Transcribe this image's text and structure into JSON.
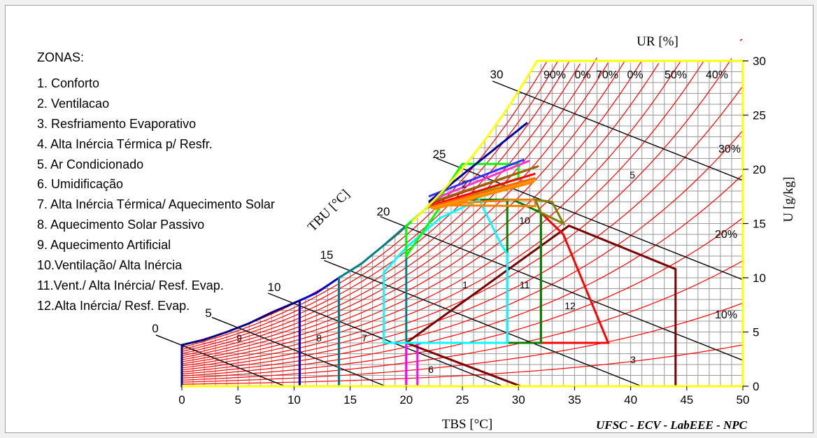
{
  "legend": {
    "title": "ZONAS:",
    "items": [
      "1. Conforto",
      "2. Ventilacao",
      "3. Resfriamento Evaporativo",
      "4. Alta Inércia Térmica p/  Resfr.",
      "5. Ar Condicionado",
      "6. Umidificação",
      "7. Alta Inércia Térmica/ Aquecimento Solar",
      "8. Aquecimento Solar Passivo",
      "9. Aquecimento Artificial",
      "10.Ventilação/ Alta Inércia",
      "11.Vent./ Alta Inércia/ Resf. Evap.",
      "12.Alta Inércia/ Resf. Evap."
    ]
  },
  "labels": {
    "xaxis_title": "TBS [°C]",
    "yaxis_title": "U [g/kg]",
    "wetbulb_title": "TBU [°C]",
    "rh_title": "UR [%]",
    "credit": "UFSC - ECV - LabEEE - NPC"
  },
  "chart_data": {
    "type": "psychrometric chart",
    "xlim": [
      0,
      50
    ],
    "ylim": [
      0,
      30
    ],
    "x_ticks": [
      "0",
      "5",
      "10",
      "15",
      "20",
      "25",
      "30",
      "35",
      "40",
      "45",
      "50"
    ],
    "y_ticks": [
      "0",
      "5",
      "10",
      "15",
      "20",
      "25",
      "30"
    ],
    "wetbulb_labels": [
      "0",
      "5",
      "10",
      "15",
      "20",
      "25",
      "30"
    ],
    "rh_labels": [
      "90%",
      "0%",
      "70%",
      "0%",
      "50%",
      "40%",
      "30%",
      "20%",
      "10%"
    ],
    "zone_numbers": [
      "1",
      "2",
      "3",
      "5",
      "6",
      "7",
      "8",
      "9",
      "10",
      "11",
      "12"
    ],
    "zone_colors": {
      "1": "#00ffff",
      "2": "#00cc00",
      "3": "#7a0000",
      "6": "#ff00ff",
      "7": "#008080",
      "8": "#0000cc",
      "9": "#000080",
      "10": "#008000",
      "11": "#ff8000",
      "12": "#ff0000",
      "12b": "#808000",
      "4": "#808000"
    }
  }
}
